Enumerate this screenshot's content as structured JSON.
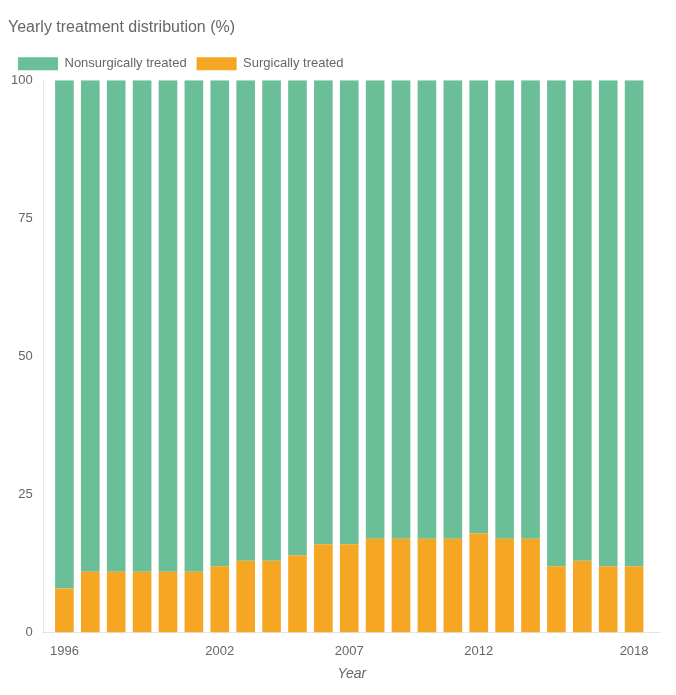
{
  "chart_data": {
    "type": "bar",
    "title": "Yearly treatment distribution (%)",
    "xlabel": "Year",
    "x": [
      1996,
      1997,
      1998,
      1999,
      2000,
      2001,
      2002,
      2003,
      2004,
      2005,
      2006,
      2007,
      2008,
      2009,
      2010,
      2011,
      2012,
      2013,
      2014,
      2015,
      2016,
      2017,
      2018
    ],
    "series": [
      {
        "name": "Surgically treated",
        "color": "#f5a623",
        "values": [
          8,
          11,
          11,
          11,
          11,
          11,
          12,
          13,
          13,
          14,
          16,
          16,
          17,
          17,
          17,
          17,
          18,
          17,
          17,
          12,
          13,
          12,
          12
        ]
      },
      {
        "name": "Nonsurgically treated",
        "color": "#6abf99",
        "values": [
          92,
          89,
          89,
          89,
          89,
          89,
          88,
          87,
          87,
          86,
          84,
          84,
          83,
          83,
          83,
          83,
          82,
          83,
          83,
          88,
          87,
          88,
          88
        ]
      }
    ],
    "stacked": true,
    "xlim": [
      1995.2,
      2019.0
    ],
    "xticks": [
      1996,
      2002,
      2007,
      2012,
      2018
    ],
    "ylim": [
      0,
      100
    ],
    "yticks": [
      0,
      25,
      50,
      75,
      100
    ],
    "grid": false,
    "legend": "upper left"
  }
}
